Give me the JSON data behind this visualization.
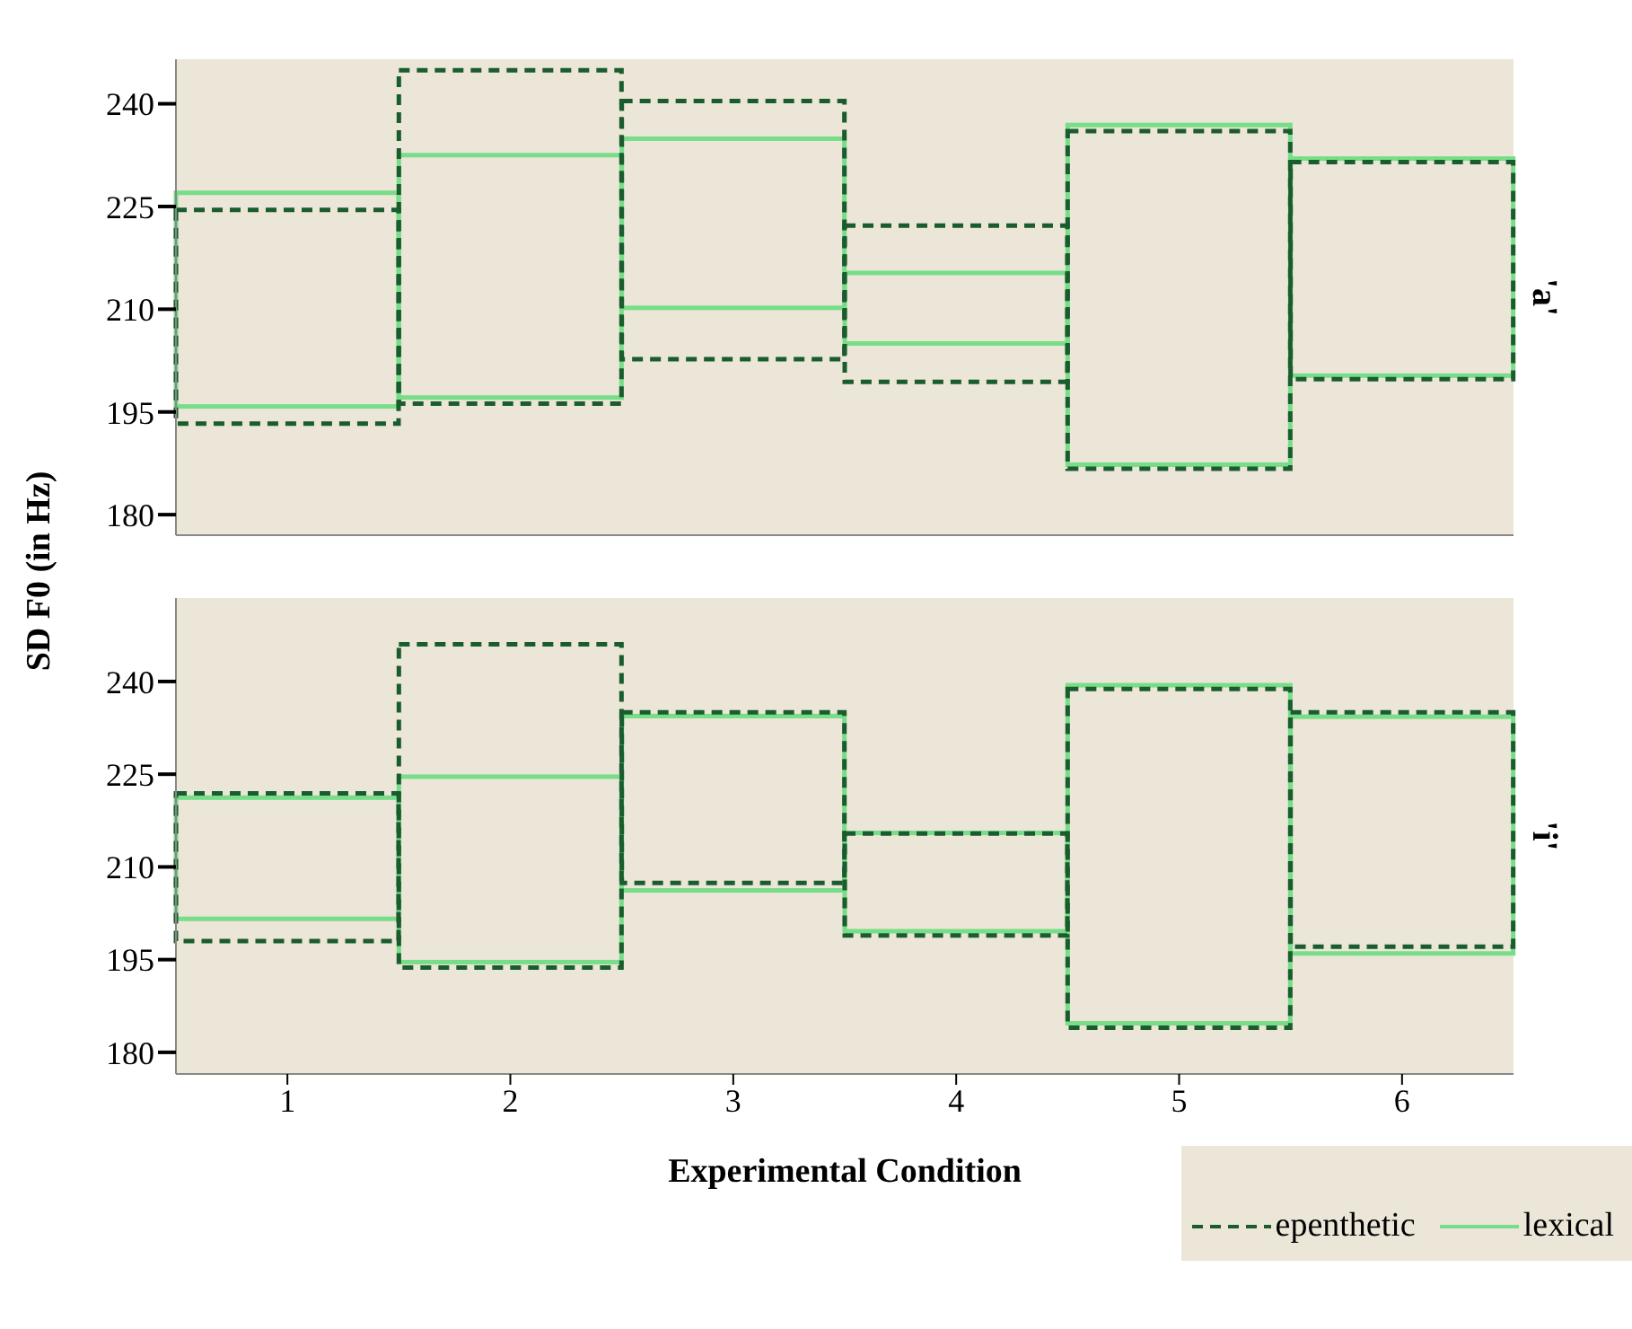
{
  "chart_data": [
    {
      "type": "bar",
      "title": "'a'",
      "ylabel": "SD F0 (in Hz)",
      "categories": [
        "1",
        "2",
        "3",
        "4",
        "5",
        "6"
      ],
      "ylim": [
        177,
        246.5
      ],
      "yticks": [
        180,
        195,
        210,
        225,
        240
      ],
      "tick_labels": "y",
      "grid": false,
      "series": [
        {
          "color": "#77dd88",
          "line_style": "solid",
          "base": [
            195.8,
            197.1,
            210.2,
            205.0,
            187.3,
            200.3
          ],
          "values": [
            31.2,
            35.4,
            24.7,
            10.3,
            49.6,
            31.7
          ]
        },
        {
          "color": "#1a5c2e",
          "line_style": "dashed",
          "base": [
            193.3,
            196.2,
            202.7,
            199.4,
            186.7,
            199.8
          ],
          "values": [
            31.2,
            48.7,
            37.7,
            22.8,
            49.3,
            31.7
          ]
        }
      ]
    },
    {
      "type": "bar",
      "title": "'i'",
      "xlabel": "Experimental Condition",
      "categories": [
        "1",
        "2",
        "3",
        "4",
        "5",
        "6"
      ],
      "ylim": [
        176.5,
        253.5
      ],
      "yticks": [
        180,
        195,
        210,
        225,
        240
      ],
      "grid": false,
      "legend": "bottom right",
      "series": [
        {
          "name": "lexical",
          "color": "#77dd88",
          "line_style": "solid",
          "base": [
            201.6,
            194.6,
            206.2,
            199.6,
            184.7,
            196.0
          ],
          "values": [
            19.6,
            30.0,
            28.2,
            15.9,
            54.7,
            38.3
          ]
        },
        {
          "name": "epenthetic",
          "color": "#1a5c2e",
          "line_style": "dashed",
          "base": [
            198.0,
            193.7,
            207.4,
            198.9,
            184.0,
            197.1
          ],
          "values": [
            23.9,
            52.3,
            27.6,
            16.5,
            54.8,
            37.9
          ]
        }
      ]
    }
  ]
}
